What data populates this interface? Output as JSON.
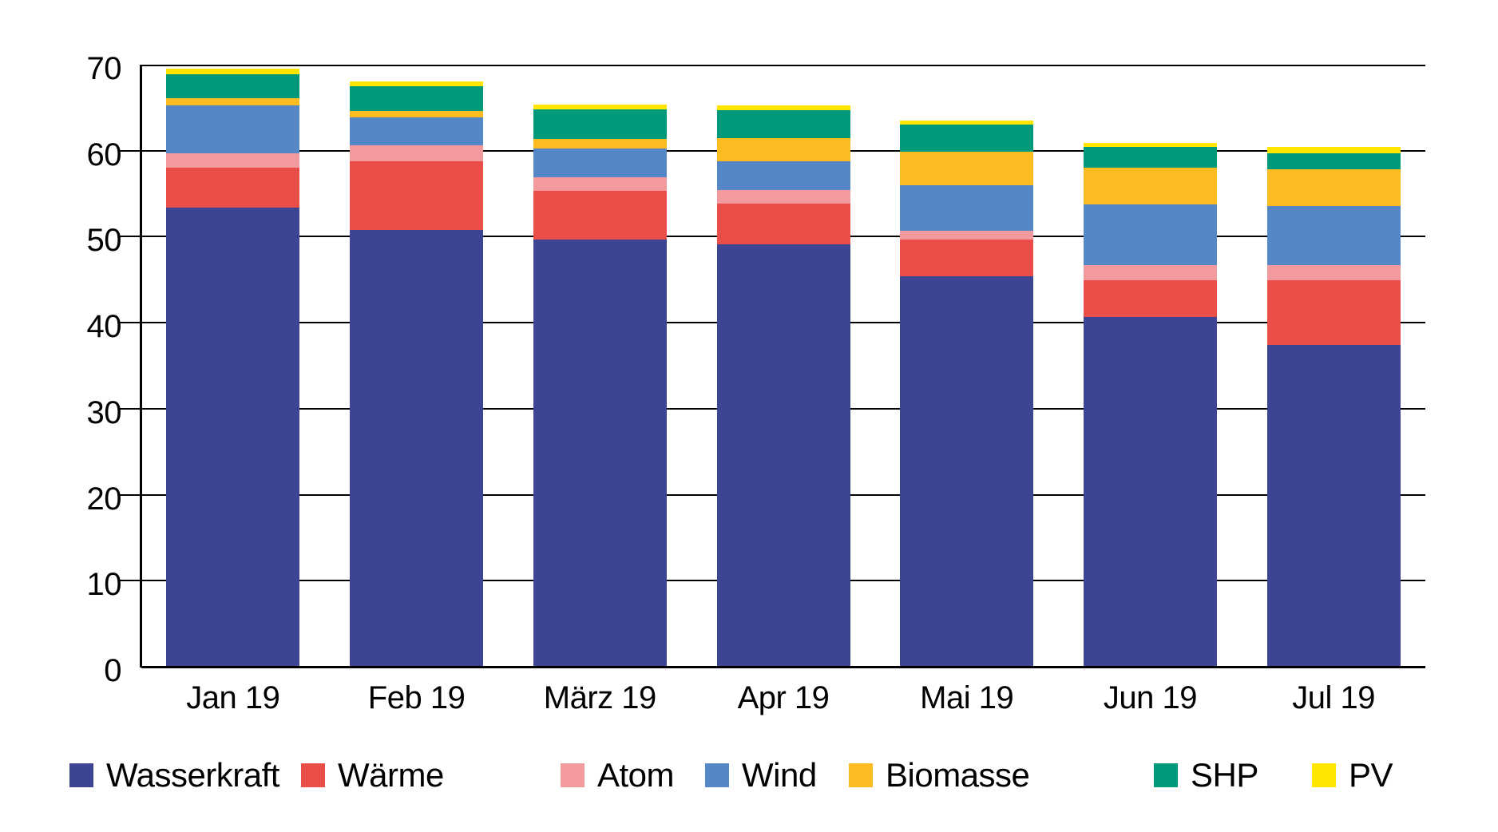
{
  "chart_data": {
    "type": "bar",
    "stacked": true,
    "title": "",
    "xlabel": "",
    "ylabel": "",
    "categories": [
      "Jan 19",
      "Feb 19",
      "März 19",
      "Apr 19",
      "Mai 19",
      "Jun 19",
      "Jul 19"
    ],
    "series": [
      {
        "name": "Wasserkraft",
        "color": "#3d4494",
        "values": [
          53.4,
          50.8,
          49.7,
          49.1,
          45.4,
          40.7,
          37.4
        ]
      },
      {
        "name": "Wärme",
        "color": "#e94f48",
        "values": [
          4.6,
          8.0,
          5.6,
          4.7,
          4.3,
          4.2,
          7.5
        ]
      },
      {
        "name": "Atom",
        "color": "#f29a9e",
        "values": [
          1.7,
          1.8,
          1.6,
          1.6,
          1.0,
          1.8,
          1.8
        ]
      },
      {
        "name": "Wind",
        "color": "#5586c6",
        "values": [
          5.6,
          3.3,
          3.4,
          3.4,
          5.3,
          7.1,
          6.9
        ]
      },
      {
        "name": "Biomasse",
        "color": "#fbbb21",
        "values": [
          0.8,
          0.7,
          1.1,
          2.7,
          3.9,
          4.2,
          4.2
        ]
      },
      {
        "name": "SHP",
        "color": "#00997a",
        "values": [
          2.8,
          2.9,
          3.4,
          3.2,
          3.1,
          2.4,
          1.9
        ]
      },
      {
        "name": "PV",
        "color": "#ffe500",
        "values": [
          0.6,
          0.6,
          0.6,
          0.6,
          0.5,
          0.5,
          0.7
        ]
      }
    ],
    "ylim": [
      0,
      70
    ],
    "ytick_step": 10,
    "ytick_labels": [
      "0",
      "10",
      "20",
      "30",
      "40",
      "50",
      "60",
      "70"
    ],
    "grid": true,
    "legend_position": "bottom",
    "axis_color": "#000000",
    "background_color": "#ffffff"
  }
}
